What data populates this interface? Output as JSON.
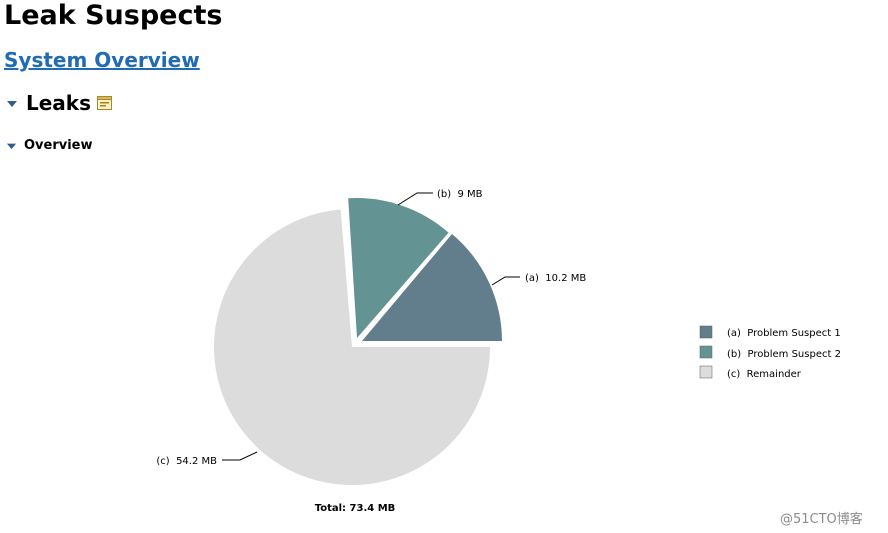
{
  "page": {
    "title": "Leak Suspects",
    "system_overview_link": "System Overview",
    "leaks_heading": "Leaks",
    "overview_heading": "Overview",
    "watermark": "@51CTO博客"
  },
  "icons": {
    "leaks_toggle": "triangle-down-icon",
    "leaks_details": "details-icon",
    "overview_toggle": "triangle-down-icon"
  },
  "colors": {
    "link": "#1f6bb5",
    "slice_a": "#627d8c",
    "slice_b": "#649394",
    "slice_c": "#dcdcdc"
  },
  "chart_data": {
    "type": "pie",
    "total_label": "Total: 73.4 MB",
    "slices": [
      {
        "key": "a",
        "label": "(a)  10.2 MB",
        "value": 10.2,
        "legend": "(a)  Problem Suspect 1"
      },
      {
        "key": "b",
        "label": "(b)  9 MB",
        "value": 9,
        "legend": "(b)  Problem Suspect 2"
      },
      {
        "key": "c",
        "label": "(c)  54.2 MB",
        "value": 54.2,
        "legend": "(c)  Remainder"
      }
    ],
    "legend_placement": "right"
  }
}
